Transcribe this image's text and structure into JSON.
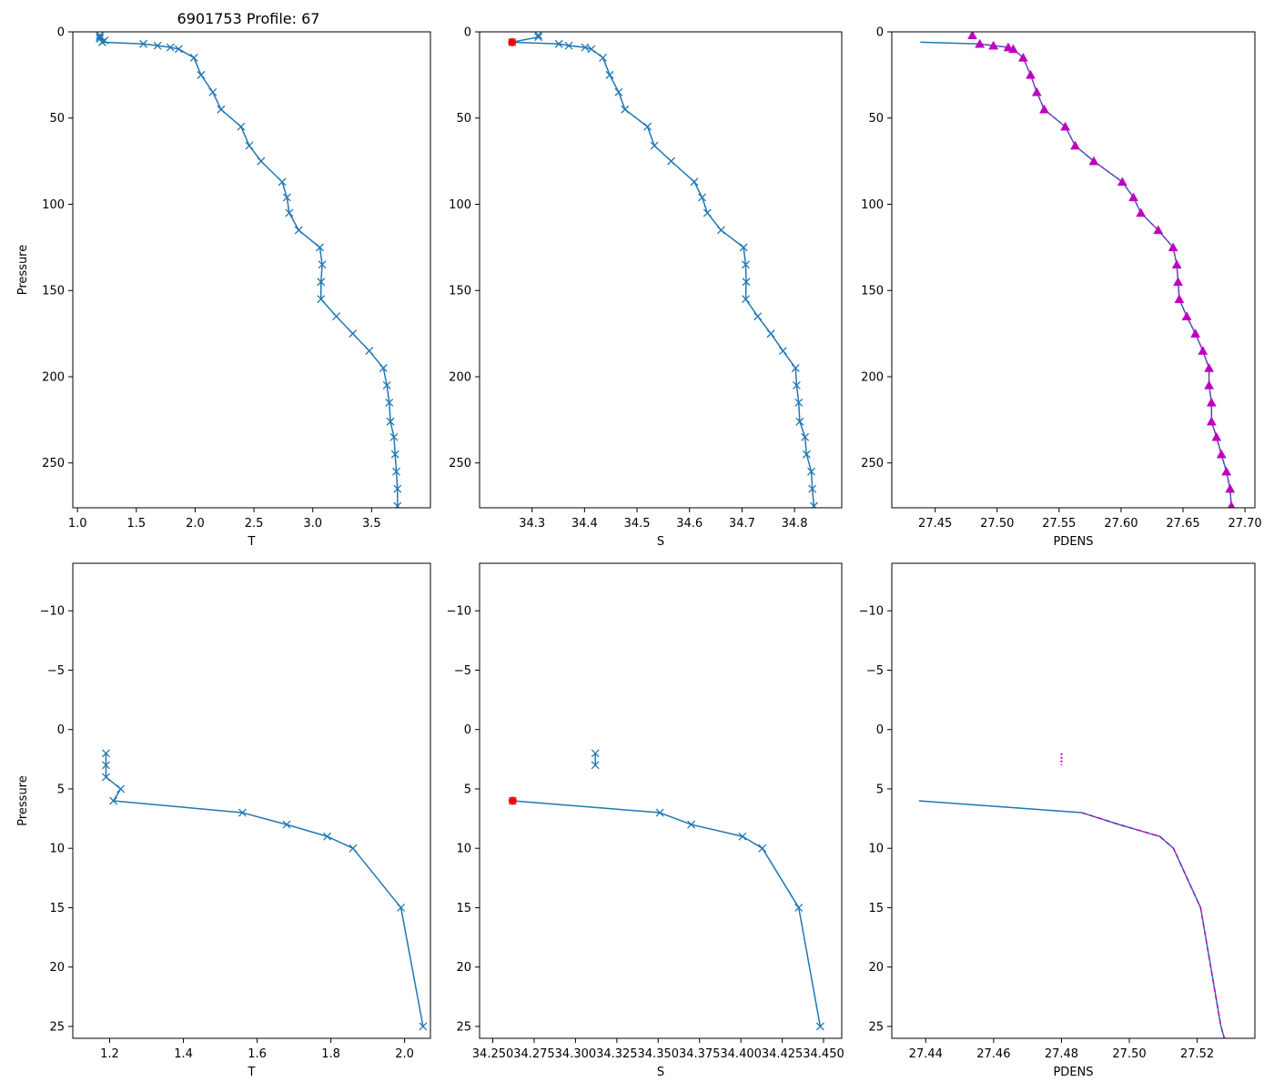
{
  "figure": {
    "title": "6901753 Profile: 67",
    "colors": {
      "line": "#1f77b4",
      "density_marker": "#bf00bf",
      "qc_flag": "#ff0000",
      "axes": "#000000",
      "background": "#ffffff"
    }
  },
  "chart_data": [
    {
      "id": "T_full",
      "type": "line",
      "marker": "x",
      "title": "6901753 Profile: 67",
      "xlabel": "T",
      "ylabel": "Pressure",
      "xlim": [
        0.96,
        4.0
      ],
      "ylim": [
        276,
        0
      ],
      "xticks": [
        1.0,
        1.5,
        2.0,
        2.5,
        3.0,
        3.5
      ],
      "xtick_labels": [
        "1.0",
        "1.5",
        "2.0",
        "2.5",
        "3.0",
        "3.5"
      ],
      "yticks": [
        0,
        50,
        100,
        150,
        200,
        250
      ],
      "ytick_labels": [
        "0",
        "50",
        "100",
        "150",
        "200",
        "250"
      ],
      "series": [
        {
          "name": "T",
          "x": [
            1.19,
            1.19,
            1.19,
            1.23,
            1.21,
            1.56,
            1.68,
            1.79,
            1.86,
            1.99,
            2.05,
            2.15,
            2.22,
            2.39,
            2.46,
            2.56,
            2.74,
            2.78,
            2.8,
            2.88,
            3.06,
            3.08,
            3.07,
            3.07,
            3.2,
            3.34,
            3.48,
            3.6,
            3.63,
            3.65,
            3.66,
            3.69,
            3.7,
            3.71,
            3.72,
            3.72
          ],
          "y": [
            2,
            3,
            4,
            5,
            6,
            7,
            8,
            9,
            10,
            15,
            25,
            35,
            45,
            55,
            66,
            75,
            87,
            96,
            105,
            115,
            125,
            135,
            145,
            155,
            165,
            175,
            185,
            195,
            205,
            215,
            226,
            235,
            245,
            255,
            265,
            275
          ]
        }
      ]
    },
    {
      "id": "S_full",
      "type": "line",
      "marker": "x",
      "xlabel": "S",
      "ylabel": "",
      "xlim": [
        34.2,
        34.89
      ],
      "ylim": [
        276,
        0
      ],
      "xticks": [
        34.3,
        34.4,
        34.5,
        34.6,
        34.7,
        34.8
      ],
      "xtick_labels": [
        "34.3",
        "34.4",
        "34.5",
        "34.6",
        "34.7",
        "34.8"
      ],
      "yticks": [
        0,
        50,
        100,
        150,
        200,
        250
      ],
      "ytick_labels": [
        "0",
        "50",
        "100",
        "150",
        "200",
        "250"
      ],
      "series": [
        {
          "name": "S",
          "x": [
            34.312,
            34.312,
            34.262,
            34.351,
            34.37,
            34.401,
            34.413,
            34.435,
            34.448,
            34.465,
            34.477,
            34.52,
            34.533,
            34.565,
            34.609,
            34.624,
            34.634,
            34.66,
            34.703,
            34.707,
            34.708,
            34.707,
            34.73,
            34.755,
            34.778,
            34.802,
            34.804,
            34.808,
            34.81,
            34.82,
            34.823,
            34.832,
            34.834,
            34.837
          ],
          "y": [
            2,
            3,
            6,
            7,
            8,
            9,
            10,
            15,
            25,
            35,
            45,
            55,
            66,
            75,
            87,
            96,
            105,
            115,
            125,
            135,
            145,
            155,
            165,
            175,
            185,
            195,
            205,
            215,
            226,
            235,
            245,
            255,
            265,
            275
          ]
        }
      ],
      "flagged_points": [
        {
          "x": 34.262,
          "y": 6
        }
      ]
    },
    {
      "id": "PDENS_full",
      "type": "line",
      "marker": "triangle",
      "xlabel": "PDENS",
      "ylabel": "",
      "xlim": [
        27.415,
        27.708
      ],
      "ylim": [
        276,
        0
      ],
      "xticks": [
        27.45,
        27.5,
        27.55,
        27.6,
        27.65,
        27.7
      ],
      "xtick_labels": [
        "27.45",
        "27.50",
        "27.55",
        "27.60",
        "27.65",
        "27.70"
      ],
      "yticks": [
        0,
        50,
        100,
        150,
        200,
        250
      ],
      "ytick_labels": [
        "0",
        "50",
        "100",
        "150",
        "200",
        "250"
      ],
      "series": [
        {
          "name": "PDENS line",
          "x": [
            27.438,
            27.486,
            27.497,
            27.509,
            27.513,
            27.521,
            27.527,
            27.532,
            27.538,
            27.555,
            27.563,
            27.578,
            27.601,
            27.61,
            27.616,
            27.63,
            27.642,
            27.645,
            27.646,
            27.647,
            27.653,
            27.66,
            27.666,
            27.671,
            27.671,
            27.673,
            27.673,
            27.677,
            27.681,
            27.685,
            27.688,
            27.689
          ],
          "y": [
            6,
            7,
            8,
            9,
            10,
            15,
            25,
            35,
            45,
            55,
            66,
            75,
            87,
            96,
            105,
            115,
            125,
            135,
            145,
            155,
            165,
            175,
            185,
            195,
            205,
            215,
            226,
            235,
            245,
            255,
            265,
            275
          ]
        },
        {
          "name": "PDENS markers",
          "x": [
            27.48,
            27.486,
            27.497,
            27.509,
            27.513,
            27.521,
            27.527,
            27.532,
            27.538,
            27.555,
            27.563,
            27.578,
            27.601,
            27.61,
            27.616,
            27.63,
            27.642,
            27.645,
            27.646,
            27.647,
            27.653,
            27.66,
            27.666,
            27.671,
            27.671,
            27.673,
            27.673,
            27.677,
            27.681,
            27.685,
            27.688,
            27.689
          ],
          "y": [
            2,
            7,
            8,
            9,
            10,
            15,
            25,
            35,
            45,
            55,
            66,
            75,
            87,
            96,
            105,
            115,
            125,
            135,
            145,
            155,
            165,
            175,
            185,
            195,
            205,
            215,
            226,
            235,
            245,
            255,
            265,
            275
          ]
        }
      ]
    },
    {
      "id": "T_zoom",
      "type": "line",
      "marker": "x",
      "xlabel": "T",
      "ylabel": "Pressure",
      "xlim": [
        1.1,
        2.07
      ],
      "ylim": [
        26,
        -14
      ],
      "xticks": [
        1.2,
        1.4,
        1.6,
        1.8,
        2.0
      ],
      "xtick_labels": [
        "1.2",
        "1.4",
        "1.6",
        "1.8",
        "2.0"
      ],
      "yticks": [
        -10,
        -5,
        0,
        5,
        10,
        15,
        20,
        25
      ],
      "ytick_labels": [
        "−10",
        "−5",
        "0",
        "5",
        "10",
        "15",
        "20",
        "25"
      ],
      "series": [
        {
          "name": "T",
          "x": [
            1.19,
            1.19,
            1.19,
            1.23,
            1.21,
            1.56,
            1.68,
            1.79,
            1.86,
            1.99,
            2.05
          ],
          "y": [
            2,
            3,
            4,
            5,
            6,
            7,
            8,
            9,
            10,
            15,
            25
          ]
        }
      ]
    },
    {
      "id": "S_zoom",
      "type": "line",
      "marker": "x",
      "xlabel": "S",
      "ylabel": "",
      "xlim": [
        34.242,
        34.461
      ],
      "ylim": [
        26,
        -14
      ],
      "xticks": [
        34.25,
        34.275,
        34.3,
        34.325,
        34.35,
        34.375,
        34.4,
        34.425,
        34.45
      ],
      "xtick_labels": [
        "34.250",
        "34.275",
        "34.300",
        "34.325",
        "34.350",
        "34.375",
        "34.400",
        "34.425",
        "34.450"
      ],
      "yticks": [
        -10,
        -5,
        0,
        5,
        10,
        15,
        20,
        25
      ],
      "ytick_labels": [
        "−10",
        "−5",
        "0",
        "5",
        "10",
        "15",
        "20",
        "25"
      ],
      "series": [
        {
          "name": "S upper",
          "x": [
            34.312,
            34.312
          ],
          "y": [
            2,
            3
          ]
        },
        {
          "name": "S",
          "x": [
            34.262,
            34.351,
            34.37,
            34.401,
            34.413,
            34.435,
            34.448
          ],
          "y": [
            6,
            7,
            8,
            9,
            10,
            15,
            25
          ]
        }
      ],
      "flagged_points": [
        {
          "x": 34.262,
          "y": 6
        }
      ]
    },
    {
      "id": "PDENS_zoom",
      "type": "line",
      "marker": "none",
      "xlabel": "PDENS",
      "ylabel": "",
      "xlim": [
        27.43,
        27.537
      ],
      "ylim": [
        26,
        -14
      ],
      "xticks": [
        27.44,
        27.46,
        27.48,
        27.5,
        27.52
      ],
      "xtick_labels": [
        "27.44",
        "27.46",
        "27.48",
        "27.50",
        "27.52"
      ],
      "yticks": [
        -10,
        -5,
        0,
        5,
        10,
        15,
        20,
        25
      ],
      "ytick_labels": [
        "−10",
        "−5",
        "0",
        "5",
        "10",
        "15",
        "20",
        "25"
      ],
      "series": [
        {
          "name": "PDENS line",
          "x": [
            27.438,
            27.486,
            27.497,
            27.509,
            27.513,
            27.521,
            27.527,
            27.528
          ],
          "y": [
            6,
            7,
            8,
            9,
            10,
            15,
            25,
            26
          ]
        },
        {
          "name": "PDENS dashed",
          "x": [
            27.486,
            27.497,
            27.509,
            27.513,
            27.521,
            27.527,
            27.528
          ],
          "y": [
            7,
            8,
            9,
            10,
            15,
            25,
            26
          ]
        },
        {
          "name": "PDENS upper",
          "x": [
            27.48,
            27.48
          ],
          "y": [
            2,
            3
          ]
        }
      ]
    }
  ]
}
